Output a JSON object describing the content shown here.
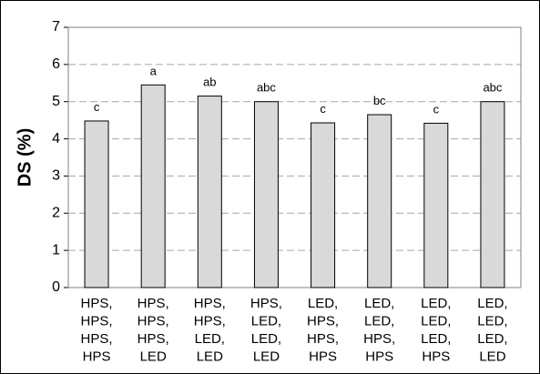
{
  "chart_data": {
    "type": "bar",
    "y_label": "DS (%)",
    "categories": [
      [
        "HPS,",
        "HPS,",
        "HPS,",
        "HPS"
      ],
      [
        "HPS,",
        "HPS,",
        "HPS,",
        "LED"
      ],
      [
        "HPS,",
        "HPS,",
        "LED,",
        "LED"
      ],
      [
        "HPS,",
        "LED,",
        "LED,",
        "LED"
      ],
      [
        "LED,",
        "HPS,",
        "HPS,",
        "HPS"
      ],
      [
        "LED,",
        "LED,",
        "HPS,",
        "HPS"
      ],
      [
        "LED,",
        "LED,",
        "LED,",
        "HPS"
      ],
      [
        "LED,",
        "LED,",
        "LED,",
        "LED"
      ]
    ],
    "values": [
      4.48,
      5.45,
      5.15,
      5.0,
      4.43,
      4.65,
      4.42,
      5.0
    ],
    "annotations": [
      "c",
      "a",
      "ab",
      "abc",
      "c",
      "bc",
      "c",
      "abc"
    ],
    "color": "#d9d9d9",
    "ylim": [
      0,
      7
    ],
    "yticks": [
      0,
      1,
      2,
      3,
      4,
      5,
      6,
      7
    ],
    "grid": true
  }
}
